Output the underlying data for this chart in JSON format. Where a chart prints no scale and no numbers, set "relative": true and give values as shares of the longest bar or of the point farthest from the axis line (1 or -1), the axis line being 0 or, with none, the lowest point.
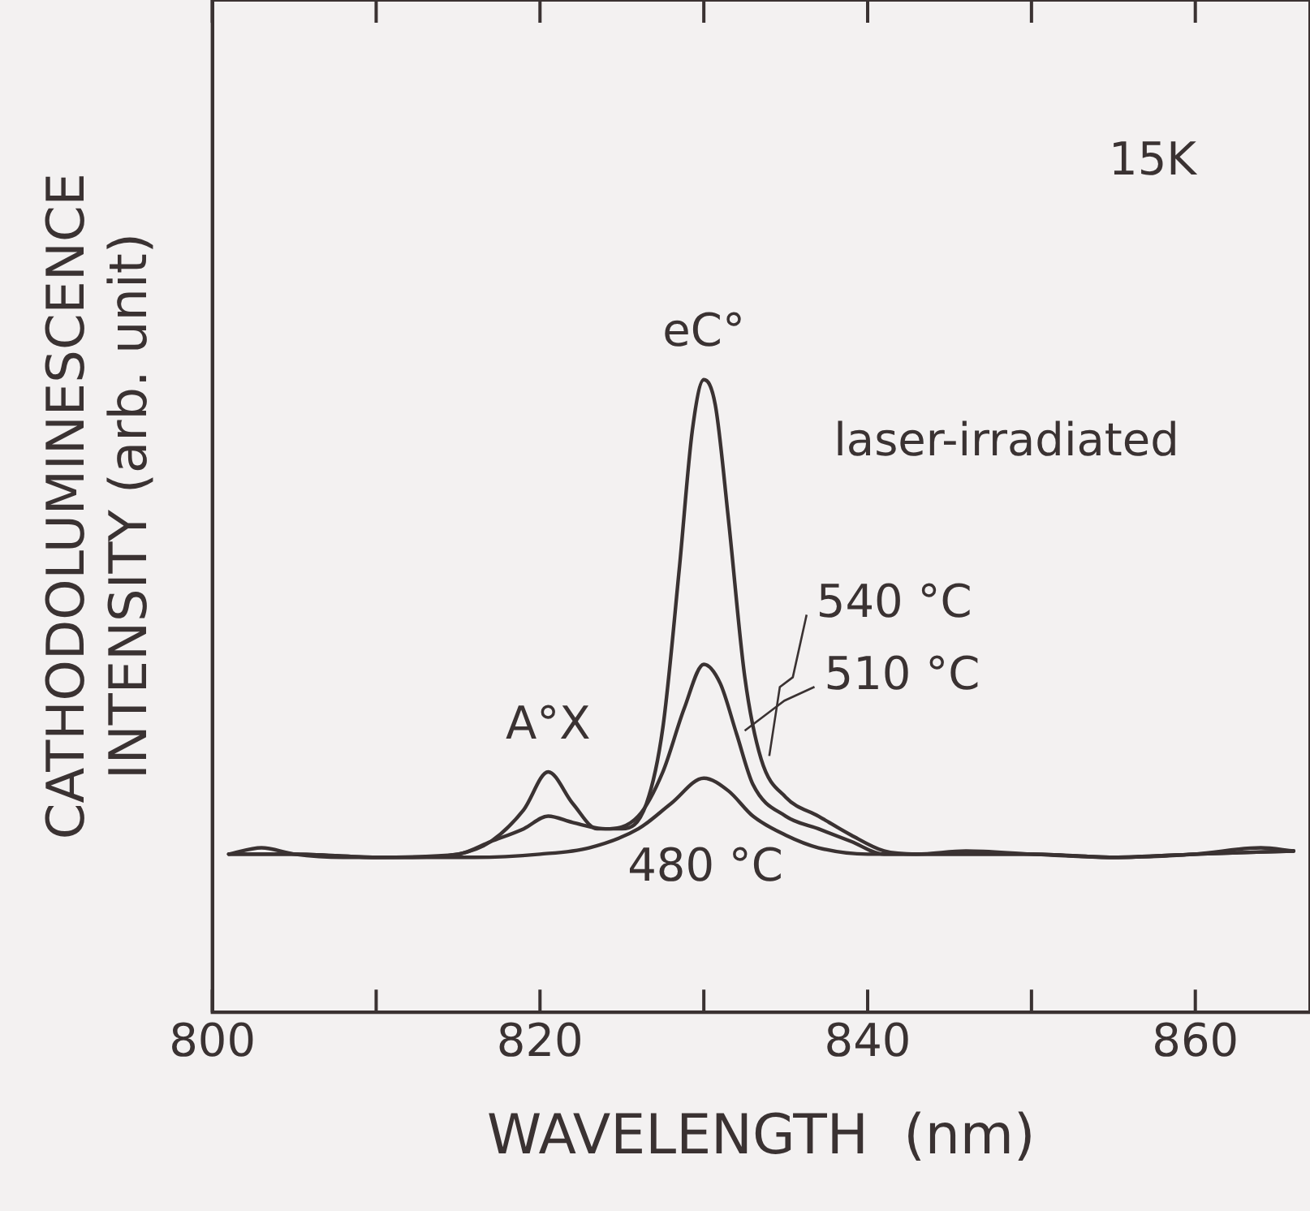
{
  "chart_data": {
    "type": "line",
    "relative": true,
    "xlabel": "WAVELENGTH  (nm)",
    "ylabel": "CATHODOLUMINESCENCE\nINTENSITY (arb. unit)",
    "xlim": [
      800,
      867
    ],
    "xticks": [
      800,
      {
        "value": 810,
        "label": null
      },
      820,
      {
        "value": 830,
        "label": null
      },
      840,
      {
        "value": 850,
        "label": null
      },
      860
    ],
    "grid": false,
    "legend": false,
    "marker": "none",
    "line_style": "solid",
    "annotations": [
      "15K",
      "laser-irradiated",
      {
        "text": "A°X",
        "x": 820.5,
        "y": 0.38
      },
      {
        "text": "eC°",
        "x": 830,
        "y": 1.0
      }
    ],
    "series": [
      {
        "name": "540 °C",
        "color": "#3a3232",
        "x": [
          801,
          803,
          805,
          808,
          812,
          815,
          817,
          819,
          820.5,
          822,
          823.5,
          825,
          826.5,
          827.5,
          828.5,
          829.3,
          830,
          830.7,
          831.5,
          832.5,
          833.5,
          835,
          837,
          839,
          841,
          843,
          846,
          850,
          855,
          860,
          864,
          866
        ],
        "values": [
          0.25,
          0.26,
          0.25,
          0.245,
          0.245,
          0.25,
          0.27,
          0.32,
          0.38,
          0.33,
          0.29,
          0.29,
          0.33,
          0.45,
          0.7,
          0.92,
          1.0,
          0.96,
          0.78,
          0.53,
          0.4,
          0.34,
          0.31,
          0.28,
          0.255,
          0.25,
          0.255,
          0.25,
          0.245,
          0.25,
          0.26,
          0.255
        ]
      },
      {
        "name": "510 °C",
        "color": "#3a3232",
        "x": [
          801,
          805,
          810,
          815,
          817,
          819,
          820.5,
          822,
          824,
          826,
          827.5,
          828.8,
          830,
          831,
          832,
          833,
          835,
          837,
          839,
          841,
          845,
          850,
          855,
          860,
          866
        ],
        "values": [
          0.25,
          0.25,
          0.245,
          0.25,
          0.27,
          0.29,
          0.31,
          0.3,
          0.29,
          0.31,
          0.38,
          0.48,
          0.55,
          0.52,
          0.44,
          0.36,
          0.31,
          0.29,
          0.27,
          0.25,
          0.25,
          0.25,
          0.245,
          0.25,
          0.255
        ]
      },
      {
        "name": "480 °C",
        "color": "#3a3232",
        "x": [
          801,
          805,
          810,
          816,
          820,
          823,
          826,
          828,
          830,
          831.5,
          833,
          835,
          837,
          840,
          845,
          850,
          855,
          860,
          866
        ],
        "values": [
          0.25,
          0.25,
          0.245,
          0.245,
          0.25,
          0.26,
          0.29,
          0.33,
          0.37,
          0.35,
          0.31,
          0.28,
          0.26,
          0.25,
          0.25,
          0.25,
          0.245,
          0.25,
          0.255
        ]
      }
    ]
  }
}
